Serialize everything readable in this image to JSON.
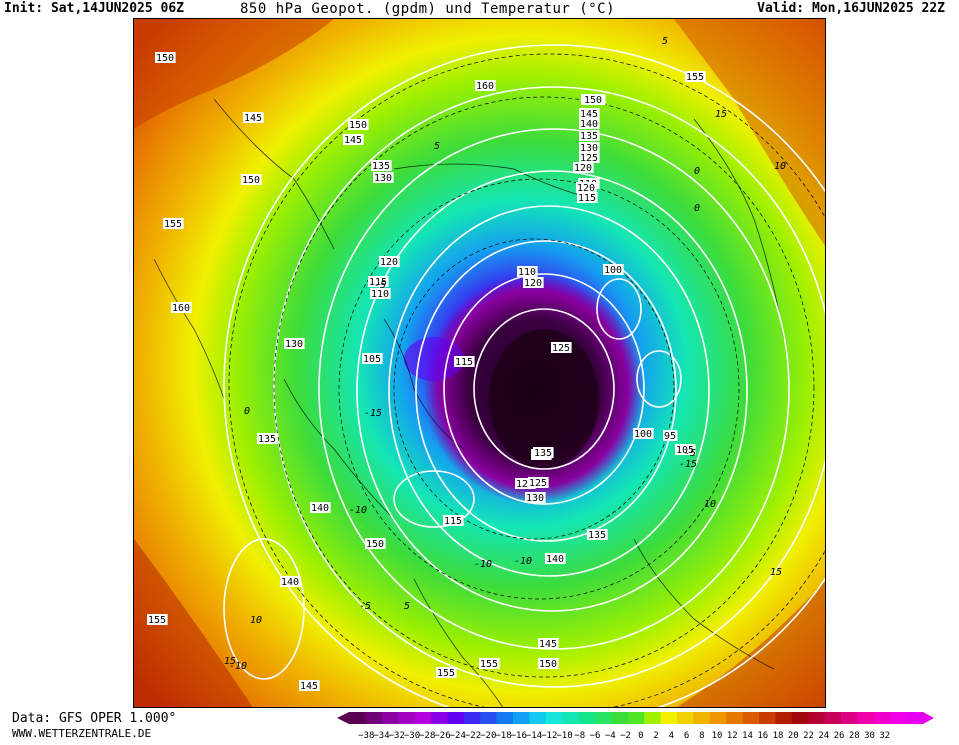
{
  "header": {
    "init": "Init: Sat,14JUN2025 06Z",
    "title": "850 hPa Geopot. (gpdm) und Temperatur (°C)",
    "valid": "Valid: Mon,16JUN2025 22Z"
  },
  "footer": {
    "source": "Data: GFS OPER 1.000°",
    "site": "WWW.WETTERZENTRALE.DE"
  },
  "legend": {
    "labels": [
      "−38",
      "−34",
      "−32",
      "−30",
      "−28",
      "−26",
      "−24",
      "−22",
      "−20",
      "−18",
      "−16",
      "−14",
      "−12",
      "−10",
      "−8",
      "−6",
      "−4",
      "−2",
      "0",
      "2",
      "4",
      "6",
      "8",
      "10",
      "12",
      "14",
      "16",
      "18",
      "20",
      "22",
      "24",
      "26",
      "28",
      "30",
      "32"
    ],
    "colors": [
      "#5a0050",
      "#6e0078",
      "#8a00a0",
      "#a000c0",
      "#b400dc",
      "#8c00e6",
      "#6400f0",
      "#3c28f0",
      "#2850f0",
      "#1478f0",
      "#14a0f0",
      "#14c8f0",
      "#14e6dc",
      "#14e6b4",
      "#14e68c",
      "#28e664",
      "#3cdc3c",
      "#50e628",
      "#a0f000",
      "#f0f000",
      "#f0d200",
      "#f0b400",
      "#f09600",
      "#e67800",
      "#dc5a00",
      "#c83c00",
      "#b41e00",
      "#a00a0a",
      "#b40032",
      "#c8005a",
      "#dc0082",
      "#f000aa",
      "#f000c8",
      "#f000e6",
      "#e600f0"
    ]
  },
  "map_labels": [
    {
      "text": "150"
    },
    {
      "text": "145"
    },
    {
      "text": "160"
    },
    {
      "text": "155"
    },
    {
      "text": "155"
    },
    {
      "text": "150"
    },
    {
      "text": "145"
    },
    {
      "text": "150"
    },
    {
      "text": "135"
    },
    {
      "text": "130"
    },
    {
      "text": "150"
    },
    {
      "text": "155"
    },
    {
      "text": "160"
    },
    {
      "text": "120"
    },
    {
      "text": "115"
    },
    {
      "text": "110"
    },
    {
      "text": "130"
    },
    {
      "text": "105"
    },
    {
      "text": "135"
    },
    {
      "text": "140"
    },
    {
      "text": "150"
    },
    {
      "text": "140"
    },
    {
      "text": "155"
    },
    {
      "text": "145"
    },
    {
      "text": "155"
    },
    {
      "text": "155"
    },
    {
      "text": "145"
    },
    {
      "text": "150"
    },
    {
      "text": "140"
    },
    {
      "text": "135"
    },
    {
      "text": "130"
    },
    {
      "text": "125"
    },
    {
      "text": "115"
    },
    {
      "text": "110"
    },
    {
      "text": "115"
    },
    {
      "text": "120"
    },
    {
      "text": "125"
    },
    {
      "text": "135"
    },
    {
      "text": "150"
    },
    {
      "text": "155"
    },
    {
      "text": "100"
    },
    {
      "text": "100"
    },
    {
      "text": "95"
    },
    {
      "text": "105"
    },
    {
      "text": "150"
    },
    {
      "text": "145"
    },
    {
      "text": "140"
    },
    {
      "text": "135"
    },
    {
      "text": "130"
    },
    {
      "text": "125"
    },
    {
      "text": "120"
    },
    {
      "text": "115"
    },
    {
      "text": "110"
    },
    {
      "text": "120"
    },
    {
      "text": "115"
    },
    {
      "text": "125"
    },
    {
      "text": "135"
    },
    {
      "text": "-10"
    },
    {
      "text": "-15"
    },
    {
      "text": "-5"
    },
    {
      "text": "0"
    },
    {
      "text": "5"
    },
    {
      "text": "10"
    },
    {
      "text": "15"
    },
    {
      "text": "-10"
    },
    {
      "text": "-15"
    },
    {
      "text": "-5"
    },
    {
      "text": "0"
    },
    {
      "text": "5"
    },
    {
      "text": "10"
    },
    {
      "text": "15"
    },
    {
      "text": "-10"
    },
    {
      "text": "-5"
    },
    {
      "text": "5"
    },
    {
      "text": "10"
    },
    {
      "text": "15"
    },
    {
      "text": "0"
    },
    {
      "text": "-10"
    }
  ]
}
